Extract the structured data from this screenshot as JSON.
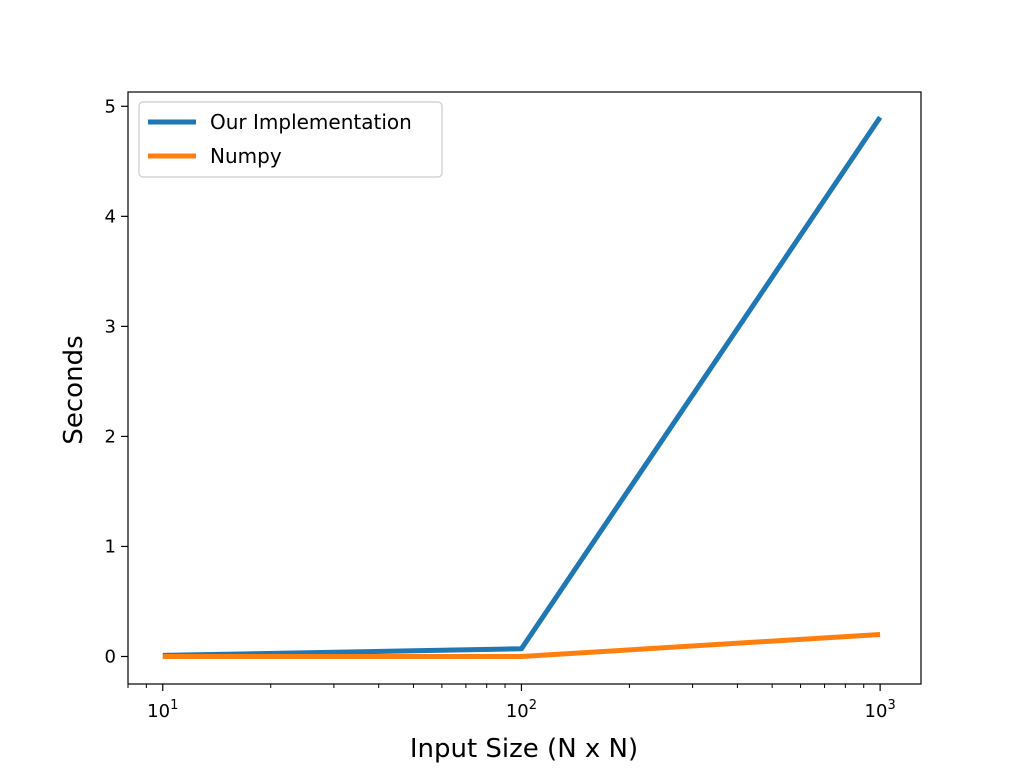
{
  "chart_data": {
    "type": "line",
    "xscale": "log",
    "xlabel": "Input Size (N x N)",
    "ylabel": "Seconds",
    "xlim": [
      8,
      1300
    ],
    "ylim": [
      -0.25,
      5.13
    ],
    "x_ticks": [
      {
        "value": 10,
        "base": "10",
        "exp": "1"
      },
      {
        "value": 100,
        "base": "10",
        "exp": "2"
      },
      {
        "value": 1000,
        "base": "10",
        "exp": "3"
      }
    ],
    "y_ticks": [
      0,
      1,
      2,
      3,
      4,
      5
    ],
    "x": [
      10,
      100,
      1000
    ],
    "series": [
      {
        "name": "Our Implementation",
        "color": "#1f77b4",
        "values": [
          0.01,
          0.07,
          4.9
        ]
      },
      {
        "name": "Numpy",
        "color": "#ff7f0e",
        "values": [
          0.0,
          0.0,
          0.2
        ]
      }
    ],
    "legend_position": "top-left",
    "grid": false
  }
}
